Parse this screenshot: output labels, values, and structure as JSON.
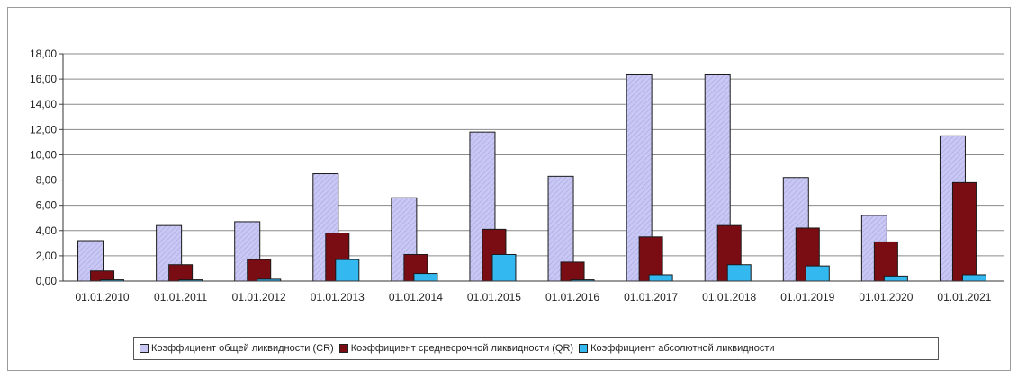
{
  "chart_data": {
    "type": "bar",
    "categories": [
      "01.01.2010",
      "01.01.2011",
      "01.01.2012",
      "01.01.2013",
      "01.01.2014",
      "01.01.2015",
      "01.01.2016",
      "01.01.2017",
      "01.01.2018",
      "01.01.2019",
      "01.01.2020",
      "01.01.2021"
    ],
    "series": [
      {
        "name": "Коэффициент  общей ликвидности (CR)",
        "color": "#c8c6f2",
        "values": [
          3.2,
          4.4,
          4.7,
          8.5,
          6.6,
          11.8,
          8.3,
          16.4,
          16.4,
          8.2,
          5.2,
          11.5
        ]
      },
      {
        "name": "Коэффициент  среднесрочной ликвидности (QR)",
        "color": "#7a0d14",
        "values": [
          0.8,
          1.3,
          1.7,
          3.8,
          2.1,
          4.1,
          1.5,
          3.5,
          4.4,
          4.2,
          3.1,
          7.8
        ]
      },
      {
        "name": "Коэффициент  абсолютной ликвидности",
        "color": "#33b8f0",
        "values": [
          0.1,
          0.1,
          0.15,
          1.7,
          0.6,
          2.1,
          0.1,
          0.5,
          1.3,
          1.2,
          0.4,
          0.5
        ]
      }
    ],
    "ylim": [
      0,
      18
    ],
    "yticks": [
      "0,00",
      "2,00",
      "4,00",
      "6,00",
      "8,00",
      "10,00",
      "12,00",
      "14,00",
      "16,00",
      "18,00"
    ],
    "grid": true,
    "legend_position": "bottom"
  }
}
